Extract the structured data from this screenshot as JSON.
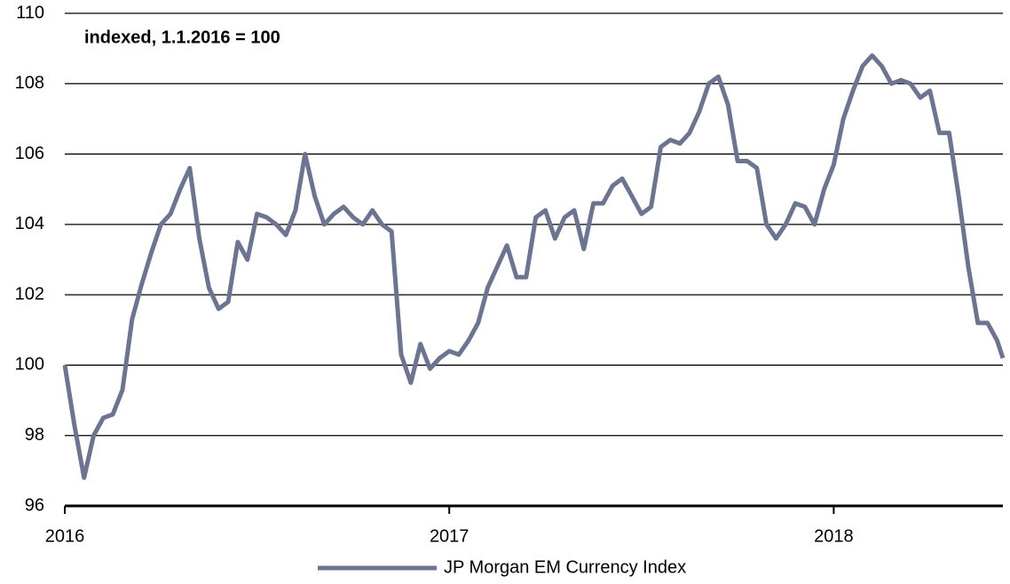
{
  "chart_data": {
    "type": "line",
    "annotation": "indexed, 1.1.2016 = 100",
    "x": [
      2016.0,
      2016.025,
      2016.05,
      2016.075,
      2016.1,
      2016.125,
      2016.15,
      2016.175,
      2016.2,
      2016.225,
      2016.25,
      2016.275,
      2016.3,
      2016.325,
      2016.35,
      2016.375,
      2016.4,
      2016.425,
      2016.45,
      2016.475,
      2016.5,
      2016.525,
      2016.55,
      2016.575,
      2016.6,
      2016.625,
      2016.65,
      2016.675,
      2016.7,
      2016.725,
      2016.75,
      2016.775,
      2016.8,
      2016.825,
      2016.85,
      2016.875,
      2016.9,
      2016.925,
      2016.95,
      2016.975,
      2017.0,
      2017.025,
      2017.05,
      2017.075,
      2017.1,
      2017.125,
      2017.15,
      2017.175,
      2017.2,
      2017.225,
      2017.25,
      2017.275,
      2017.3,
      2017.325,
      2017.35,
      2017.375,
      2017.4,
      2017.425,
      2017.45,
      2017.475,
      2017.5,
      2017.525,
      2017.55,
      2017.575,
      2017.6,
      2017.625,
      2017.65,
      2017.675,
      2017.7,
      2017.725,
      2017.75,
      2017.775,
      2017.8,
      2017.825,
      2017.85,
      2017.875,
      2017.9,
      2017.925,
      2017.95,
      2017.975,
      2018.0,
      2018.025,
      2018.05,
      2018.075,
      2018.1,
      2018.125,
      2018.15,
      2018.175,
      2018.2,
      2018.225,
      2018.25,
      2018.275,
      2018.3,
      2018.325,
      2018.35,
      2018.375,
      2018.4,
      2018.425,
      2018.44
    ],
    "series": [
      {
        "name": "JP Morgan EM Currency Index",
        "color": "#6b7491",
        "values": [
          100,
          98.3,
          96.8,
          98.0,
          98.5,
          98.6,
          99.3,
          101.3,
          102.3,
          103.2,
          104.0,
          104.3,
          105.0,
          105.6,
          103.6,
          102.2,
          101.6,
          101.8,
          103.5,
          103.0,
          104.3,
          104.2,
          104.0,
          103.7,
          104.4,
          106.0,
          104.8,
          104.0,
          104.3,
          104.5,
          104.2,
          104.0,
          104.4,
          104.0,
          103.8,
          100.3,
          99.5,
          100.6,
          99.9,
          100.2,
          100.4,
          100.3,
          100.7,
          101.2,
          102.2,
          102.8,
          103.4,
          102.5,
          102.5,
          104.2,
          104.4,
          103.6,
          104.2,
          104.4,
          103.3,
          104.6,
          104.6,
          105.1,
          105.3,
          104.8,
          104.3,
          104.5,
          106.2,
          106.4,
          106.3,
          106.6,
          107.2,
          108.0,
          108.2,
          107.4,
          105.8,
          105.8,
          105.6,
          104.0,
          103.6,
          104.0,
          104.6,
          104.5,
          104.0,
          105.0,
          105.7,
          107.0,
          107.8,
          108.5,
          108.8,
          108.5,
          108.0,
          108.1,
          108.0,
          107.6,
          107.8,
          106.6,
          106.6,
          104.8,
          102.8,
          101.2,
          101.2,
          100.7,
          100.2
        ]
      }
    ],
    "xlim": [
      2016,
      2018.44
    ],
    "xticks": [
      2016,
      2017,
      2018
    ],
    "ylim": [
      96,
      110
    ],
    "yticks": [
      96,
      98,
      100,
      102,
      104,
      106,
      108,
      110
    ],
    "grid": true,
    "legend": "bottom"
  }
}
